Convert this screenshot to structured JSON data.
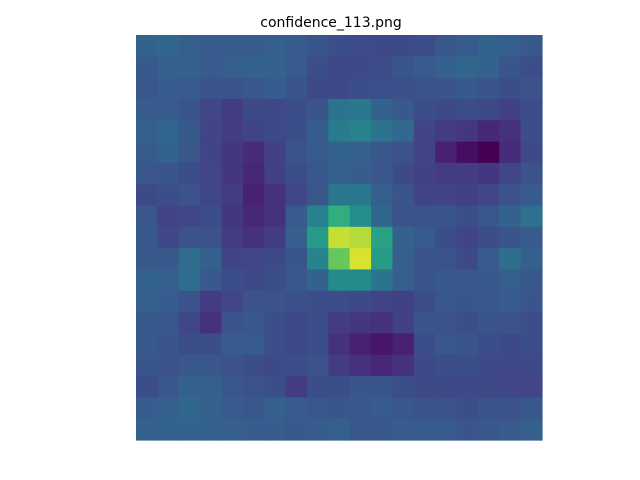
{
  "chart_data": {
    "type": "heatmap",
    "title": "confidence_113.png",
    "xlabel": "",
    "ylabel": "",
    "axes_visible": false,
    "grid": false,
    "legend": "none",
    "colormap": "viridis",
    "value_range": [
      0,
      1
    ],
    "rows": 19,
    "cols": 19,
    "values": [
      [
        0.4,
        0.42,
        0.38,
        0.36,
        0.37,
        0.36,
        0.38,
        0.36,
        0.33,
        0.3,
        0.29,
        0.28,
        0.28,
        0.3,
        0.34,
        0.36,
        0.4,
        0.38,
        0.35
      ],
      [
        0.35,
        0.38,
        0.4,
        0.36,
        0.38,
        0.4,
        0.4,
        0.36,
        0.3,
        0.27,
        0.27,
        0.29,
        0.33,
        0.36,
        0.39,
        0.42,
        0.4,
        0.33,
        0.3
      ],
      [
        0.34,
        0.37,
        0.36,
        0.33,
        0.32,
        0.34,
        0.37,
        0.33,
        0.28,
        0.28,
        0.3,
        0.31,
        0.31,
        0.32,
        0.33,
        0.35,
        0.33,
        0.3,
        0.32
      ],
      [
        0.36,
        0.36,
        0.33,
        0.26,
        0.22,
        0.28,
        0.27,
        0.3,
        0.33,
        0.47,
        0.5,
        0.4,
        0.35,
        0.3,
        0.28,
        0.3,
        0.28,
        0.24,
        0.3
      ],
      [
        0.38,
        0.41,
        0.35,
        0.25,
        0.22,
        0.25,
        0.28,
        0.3,
        0.37,
        0.52,
        0.55,
        0.48,
        0.43,
        0.25,
        0.22,
        0.2,
        0.14,
        0.18,
        0.3
      ],
      [
        0.36,
        0.4,
        0.34,
        0.25,
        0.2,
        0.16,
        0.24,
        0.32,
        0.36,
        0.4,
        0.38,
        0.34,
        0.32,
        0.25,
        0.12,
        0.05,
        0.0,
        0.16,
        0.28
      ],
      [
        0.34,
        0.33,
        0.3,
        0.26,
        0.2,
        0.14,
        0.24,
        0.3,
        0.34,
        0.38,
        0.37,
        0.34,
        0.28,
        0.24,
        0.22,
        0.22,
        0.2,
        0.26,
        0.32
      ],
      [
        0.28,
        0.3,
        0.32,
        0.26,
        0.22,
        0.12,
        0.18,
        0.26,
        0.34,
        0.5,
        0.5,
        0.38,
        0.33,
        0.25,
        0.25,
        0.24,
        0.26,
        0.32,
        0.36
      ],
      [
        0.34,
        0.25,
        0.26,
        0.3,
        0.2,
        0.14,
        0.18,
        0.36,
        0.55,
        0.72,
        0.62,
        0.42,
        0.32,
        0.32,
        0.33,
        0.3,
        0.34,
        0.4,
        0.46
      ],
      [
        0.35,
        0.27,
        0.32,
        0.32,
        0.22,
        0.18,
        0.22,
        0.38,
        0.66,
        0.94,
        0.92,
        0.68,
        0.4,
        0.36,
        0.3,
        0.25,
        0.3,
        0.33,
        0.36
      ],
      [
        0.35,
        0.35,
        0.44,
        0.38,
        0.25,
        0.26,
        0.28,
        0.33,
        0.56,
        0.82,
        0.96,
        0.66,
        0.38,
        0.33,
        0.32,
        0.28,
        0.36,
        0.45,
        0.38
      ],
      [
        0.4,
        0.38,
        0.45,
        0.35,
        0.3,
        0.28,
        0.3,
        0.34,
        0.4,
        0.6,
        0.6,
        0.48,
        0.38,
        0.33,
        0.35,
        0.34,
        0.35,
        0.38,
        0.34
      ],
      [
        0.38,
        0.37,
        0.32,
        0.22,
        0.26,
        0.32,
        0.32,
        0.31,
        0.3,
        0.3,
        0.28,
        0.25,
        0.24,
        0.3,
        0.34,
        0.33,
        0.34,
        0.36,
        0.33
      ],
      [
        0.35,
        0.34,
        0.26,
        0.18,
        0.32,
        0.34,
        0.3,
        0.28,
        0.3,
        0.22,
        0.2,
        0.18,
        0.24,
        0.33,
        0.32,
        0.3,
        0.33,
        0.32,
        0.3
      ],
      [
        0.35,
        0.33,
        0.3,
        0.3,
        0.36,
        0.36,
        0.3,
        0.28,
        0.3,
        0.18,
        0.12,
        0.08,
        0.12,
        0.3,
        0.34,
        0.33,
        0.3,
        0.28,
        0.3
      ],
      [
        0.33,
        0.32,
        0.34,
        0.34,
        0.32,
        0.3,
        0.28,
        0.3,
        0.32,
        0.22,
        0.18,
        0.14,
        0.18,
        0.28,
        0.3,
        0.3,
        0.28,
        0.27,
        0.28
      ],
      [
        0.3,
        0.34,
        0.4,
        0.38,
        0.34,
        0.32,
        0.3,
        0.22,
        0.3,
        0.3,
        0.33,
        0.33,
        0.3,
        0.28,
        0.28,
        0.28,
        0.28,
        0.26,
        0.26
      ],
      [
        0.37,
        0.38,
        0.42,
        0.4,
        0.36,
        0.34,
        0.38,
        0.36,
        0.34,
        0.33,
        0.34,
        0.36,
        0.34,
        0.32,
        0.32,
        0.3,
        0.32,
        0.32,
        0.34
      ],
      [
        0.4,
        0.4,
        0.4,
        0.38,
        0.38,
        0.37,
        0.37,
        0.35,
        0.36,
        0.38,
        0.34,
        0.34,
        0.36,
        0.36,
        0.36,
        0.33,
        0.34,
        0.36,
        0.38
      ]
    ]
  }
}
